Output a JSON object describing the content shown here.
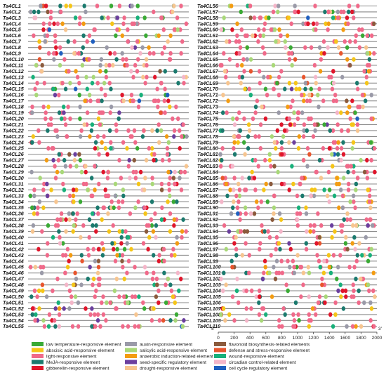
{
  "figure": {
    "axis": {
      "ticks": [
        "0",
        "200",
        "400",
        "600",
        "800",
        "1000",
        "1200",
        "1400",
        "1600",
        "1800",
        "2000"
      ],
      "start_label": "5'",
      "end_label": "3'"
    },
    "genes_left": [
      "Ta4CL1",
      "Ta4CL2",
      "Ta4CL3",
      "Ta4CL4",
      "Ta4CL5",
      "Ta4CL6",
      "Ta4CL7",
      "Ta4CL8",
      "Ta4CL9",
      "Ta4CL10",
      "Ta4CL11",
      "Ta4CL12",
      "Ta4CL13",
      "Ta4CL14",
      "Ta4CL15",
      "Ta4CL16",
      "Ta4CL17",
      "Ta4CL18",
      "Ta4CL19",
      "Ta4CL20",
      "Ta4CL21",
      "Ta4CL22",
      "Ta4CL23",
      "Ta4CL24",
      "Ta4CL25",
      "Ta4CL26",
      "Ta4CL27",
      "Ta4CL28",
      "Ta4CL29",
      "Ta4CL30",
      "Ta4CL31",
      "Ta4CL32",
      "Ta4CL33",
      "Ta4CL34",
      "Ta4CL35",
      "Ta4CL36",
      "Ta4CL37",
      "Ta4CL38",
      "Ta4CL39",
      "Ta4CL40",
      "Ta4CL41",
      "Ta4CL42",
      "Ta4CL43",
      "Ta4CL44",
      "Ta4CL45",
      "Ta4CL46",
      "Ta4CL47",
      "Ta4CL48",
      "Ta4CL49",
      "Ta4CL50",
      "Ta4CL51",
      "Ta4CL52",
      "Ta4CL53",
      "Ta4CL54",
      "Ta4CL55"
    ],
    "genes_right": [
      "Ta4CL56",
      "Ta4CL57",
      "Ta4CL58",
      "Ta4CL59",
      "Ta4CL60",
      "Ta4CL61",
      "Ta4CL62",
      "Ta4CL63",
      "Ta4CL64",
      "Ta4CL65",
      "Ta4CL66",
      "Ta4CL67",
      "Ta4CL68",
      "Ta4CL69",
      "Ta4CL70",
      "Ta4CL71",
      "Ta4CL72",
      "Ta4CL73",
      "Ta4CL74",
      "Ta4CL75",
      "Ta4CL76",
      "Ta4CL77",
      "Ta4CL78",
      "Ta4CL79",
      "Ta4CL80",
      "Ta4CL81",
      "Ta4CL82",
      "Ta4CL83",
      "Ta4CL84",
      "Ta4CL85",
      "Ta4CL86",
      "Ta4CL87",
      "Ta4CL88",
      "Ta4CL89",
      "Ta4CL90",
      "Ta4CL91",
      "Ta4CL92",
      "Ta4CL93",
      "Ta4CL94",
      "Ta4CL95",
      "Ta4CL96",
      "Ta4CL97",
      "Ta4CL98",
      "Ta4CL99",
      "Ta4CL100",
      "Ta4CL101",
      "Ta4CL102",
      "Ta4CL103",
      "Ta4CL104",
      "Ta4CL105",
      "Ta4CL106",
      "Ta4CL107",
      "Ta4CL108",
      "Ta4CL109",
      "Ta4CL110"
    ],
    "element_types": [
      {
        "key": "lt",
        "name": "low temperature-responsive element",
        "color": "#3aaa35"
      },
      {
        "key": "aba",
        "name": "abscisic acid-responsive element",
        "color": "#f5c518"
      },
      {
        "key": "lr",
        "name": "light-responsive element",
        "color": "#f06a8a"
      },
      {
        "key": "meja",
        "name": "MeJA-responsive element",
        "color": "#1b7a6e"
      },
      {
        "key": "ga",
        "name": "gibberellin-responsive element",
        "color": "#e0162b"
      },
      {
        "key": "aux",
        "name": "auxin-responsive element",
        "color": "#9a9aa8"
      },
      {
        "key": "sa",
        "name": "salicylic acid-responsive element",
        "color": "#a8d878"
      },
      {
        "key": "an",
        "name": "anaerobic induction-related element",
        "color": "#f39c12"
      },
      {
        "key": "seed",
        "name": "seed-specific regulatory element",
        "color": "#6b3f9e"
      },
      {
        "key": "dr",
        "name": "drought-responsive element",
        "color": "#f7c58f"
      },
      {
        "key": "fl",
        "name": "flavonoid biosynthesis-related elements",
        "color": "#8b5a3c"
      },
      {
        "key": "ds",
        "name": "defense and stress-responsive element",
        "color": "#e8552d"
      },
      {
        "key": "wr",
        "name": "wound-responsive element",
        "color": "#18b07a"
      },
      {
        "key": "cc",
        "name": "circadian control-related element",
        "color": "#f4b6c9"
      },
      {
        "key": "cyc",
        "name": "cell cycle regulatory element",
        "color": "#1f5fbf"
      }
    ]
  }
}
